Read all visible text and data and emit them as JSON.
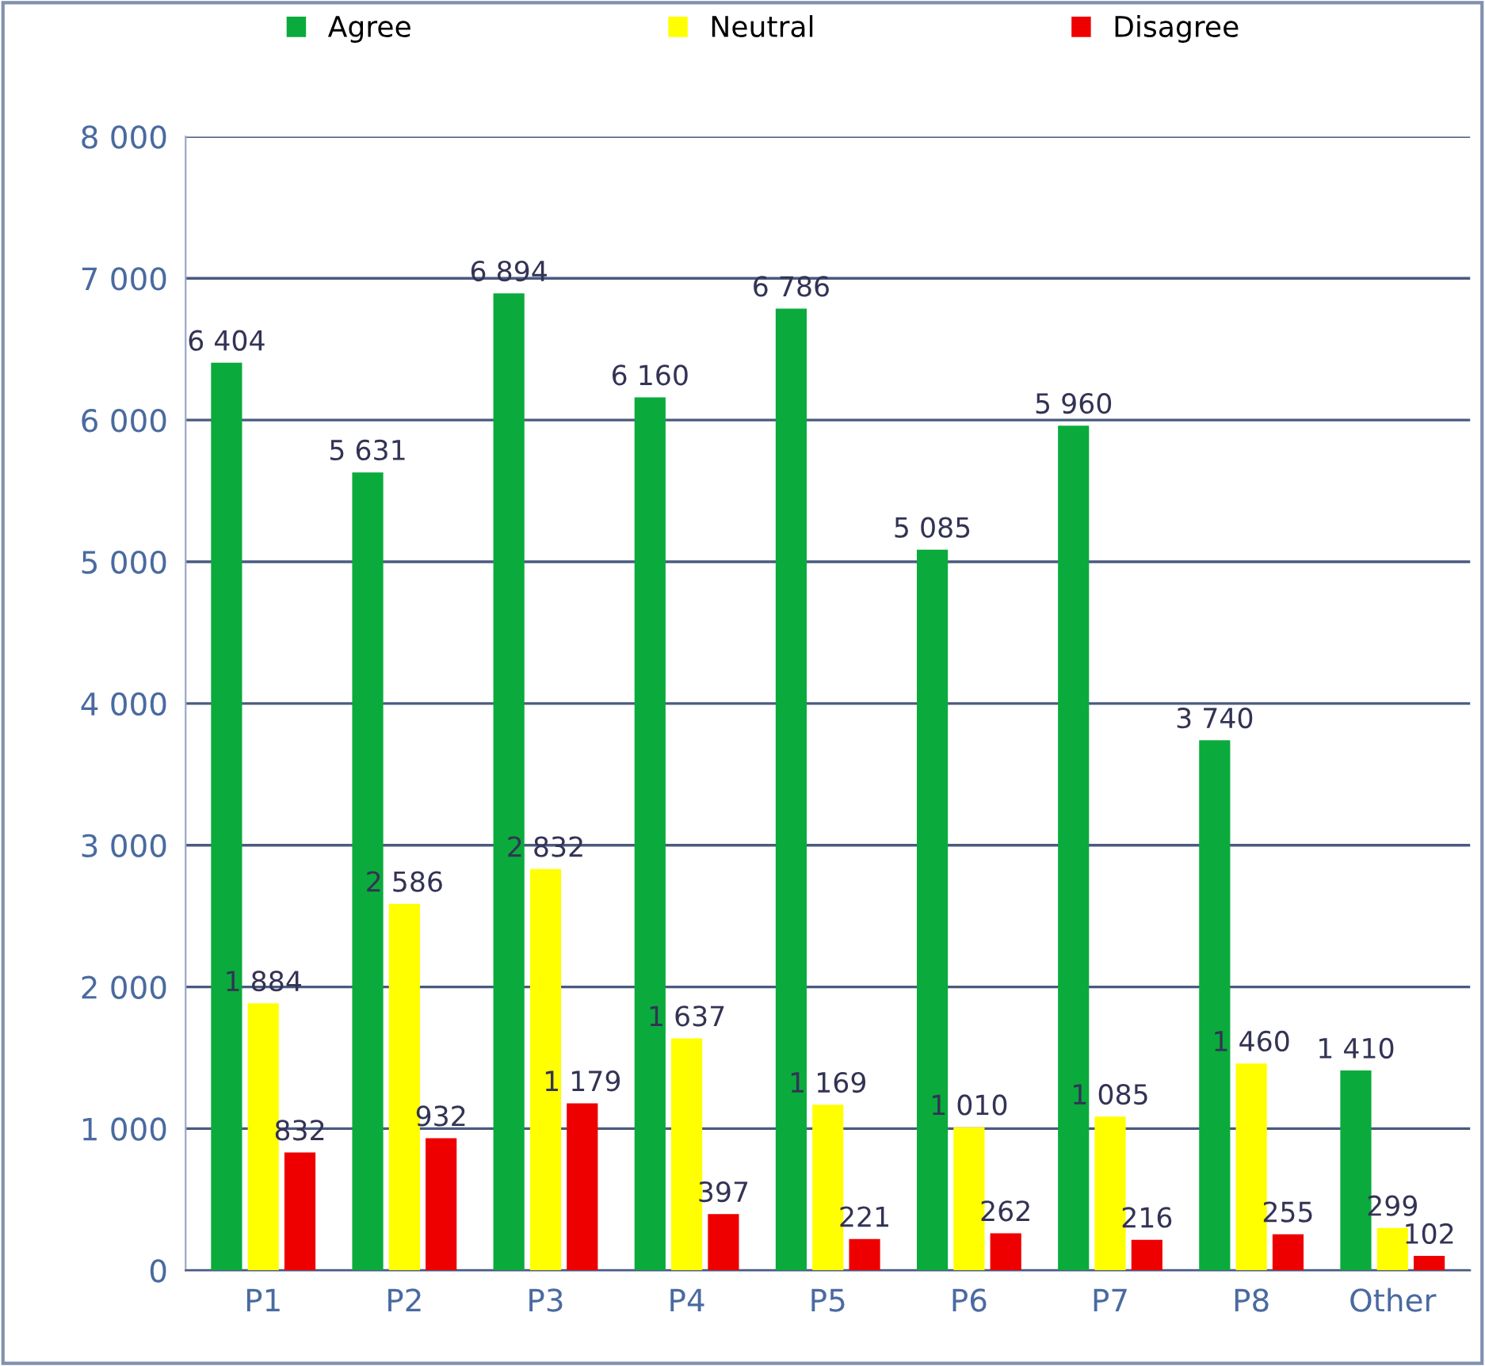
{
  "chart_data": {
    "type": "bar",
    "categories": [
      "P1",
      "P2",
      "P3",
      "P4",
      "P5",
      "P6",
      "P7",
      "P8",
      "Other"
    ],
    "series": [
      {
        "name": "Agree",
        "color": "#0aab3c",
        "values": [
          6404,
          5631,
          6894,
          6160,
          6786,
          5085,
          5960,
          3740,
          1410
        ],
        "value_labels": [
          "6 404",
          "5 631",
          "6 894",
          "6 160",
          "6 786",
          "5 085",
          "5 960",
          "3 740",
          "1 410"
        ]
      },
      {
        "name": "Neutral",
        "color": "#ffff00",
        "values": [
          1884,
          2586,
          2832,
          1637,
          1169,
          1010,
          1085,
          1460,
          299
        ],
        "value_labels": [
          "1 884",
          "2 586",
          "2 832",
          "1 637",
          "1 169",
          "1 010",
          "1 085",
          "1 460",
          "299"
        ]
      },
      {
        "name": "Disagree",
        "color": "#ee0000",
        "values": [
          832,
          932,
          1179,
          397,
          221,
          262,
          216,
          255,
          102
        ],
        "value_labels": [
          "832",
          "932",
          "1 179",
          "397",
          "221",
          "262",
          "216",
          "255",
          "102"
        ]
      }
    ],
    "ylim": [
      0,
      8000
    ],
    "yticks": [
      {
        "value": 0,
        "label": "0"
      },
      {
        "value": 1000,
        "label": "1 000"
      },
      {
        "value": 2000,
        "label": "2 000"
      },
      {
        "value": 3000,
        "label": "3 000"
      },
      {
        "value": 4000,
        "label": "4 000"
      },
      {
        "value": 5000,
        "label": "5 000"
      },
      {
        "value": 6000,
        "label": "6 000"
      },
      {
        "value": 7000,
        "label": "7 000"
      },
      {
        "value": 8000,
        "label": "8 000"
      }
    ],
    "grid": "y",
    "legend": "top"
  }
}
